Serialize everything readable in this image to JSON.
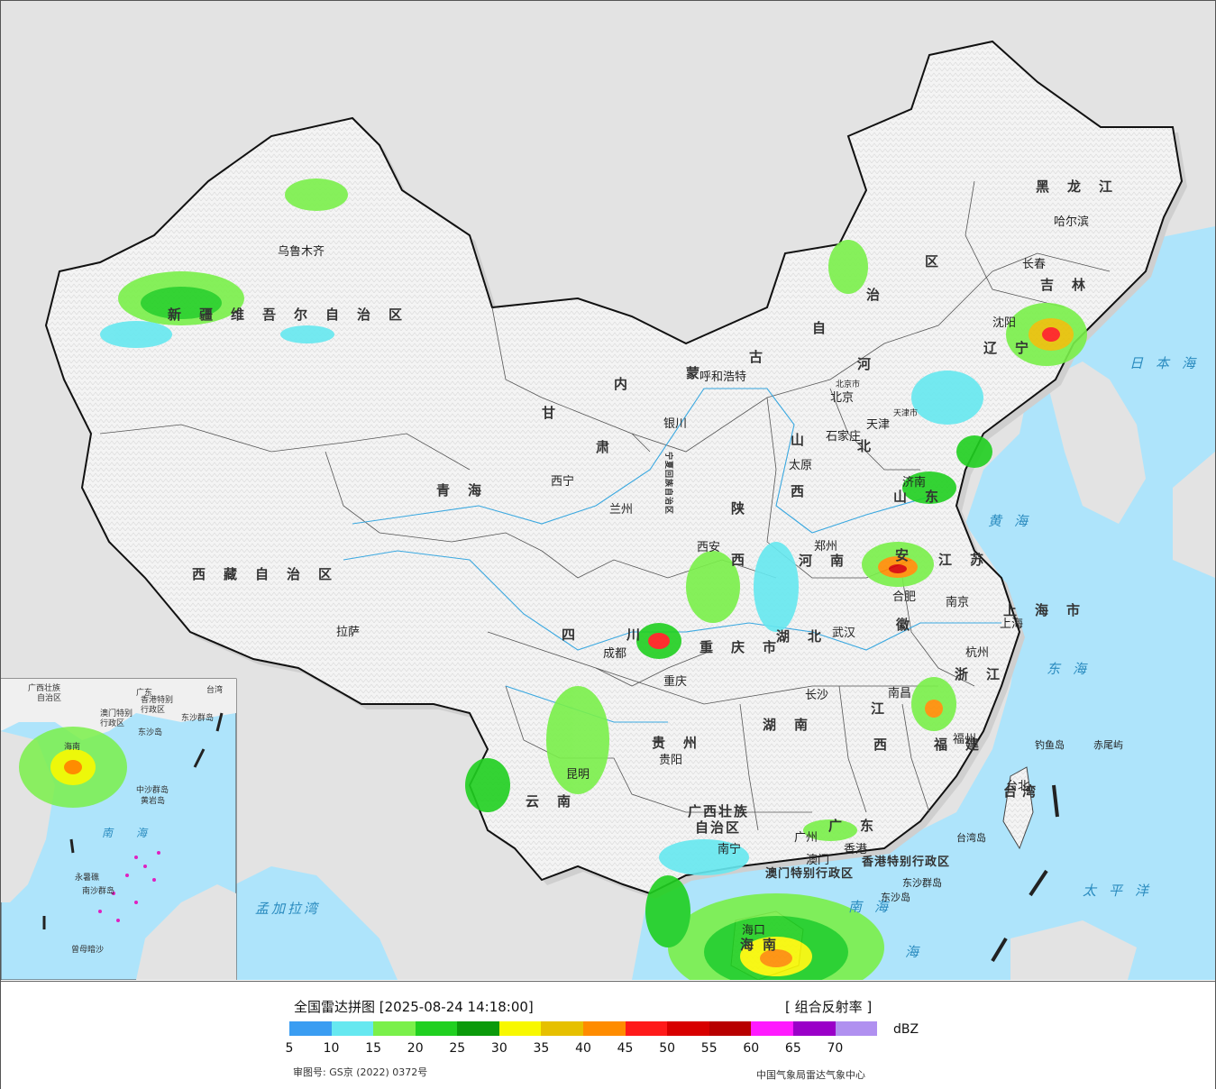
{
  "title": "全国雷达拼图 [2025-08-24 14:18:00]",
  "product": "[ 组合反射率 ]",
  "unit": "dBZ",
  "colorscale": {
    "colors": [
      "#3a9df2",
      "#66e8f0",
      "#7af04a",
      "#20d020",
      "#0b9a0b",
      "#f8f800",
      "#e6c000",
      "#ff8c00",
      "#ff1a1a",
      "#d80000",
      "#b80000",
      "#ff1aff",
      "#9a00c8",
      "#b090f0"
    ],
    "ticks": [
      "5",
      "10",
      "15",
      "20",
      "25",
      "30",
      "35",
      "40",
      "45",
      "50",
      "55",
      "60",
      "65",
      "70"
    ]
  },
  "approval_number": "审图号: GS京 (2022) 0372号",
  "credit": "中国气象局雷达气象中心",
  "regions": [
    {
      "name": "新疆维吾尔自治区",
      "kind": "prov"
    },
    {
      "name": "西藏自治区",
      "kind": "prov"
    },
    {
      "name": "青海",
      "kind": "prov"
    },
    {
      "name": "甘",
      "kind": "prov"
    },
    {
      "name": "肃",
      "kind": "prov"
    },
    {
      "name": "内",
      "kind": "prov"
    },
    {
      "name": "蒙",
      "kind": "prov"
    },
    {
      "name": "古",
      "kind": "prov"
    },
    {
      "name": "自",
      "kind": "prov"
    },
    {
      "name": "治",
      "kind": "prov"
    },
    {
      "name": "区",
      "kind": "prov"
    },
    {
      "name": "黑龙江",
      "kind": "prov"
    },
    {
      "name": "吉林",
      "kind": "prov"
    },
    {
      "name": "辽宁",
      "kind": "prov"
    },
    {
      "name": "河",
      "kind": "prov"
    },
    {
      "name": "北",
      "kind": "prov"
    },
    {
      "name": "山",
      "kind": "prov"
    },
    {
      "name": "西",
      "kind": "prov"
    },
    {
      "name": "山东",
      "kind": "prov"
    },
    {
      "name": "陕",
      "kind": "prov"
    },
    {
      "name": "西",
      "kind": "prov"
    },
    {
      "name": "河南",
      "kind": "prov"
    },
    {
      "name": "江苏",
      "kind": "prov"
    },
    {
      "name": "安",
      "kind": "prov"
    },
    {
      "name": "徽",
      "kind": "prov"
    },
    {
      "name": "湖北",
      "kind": "prov"
    },
    {
      "name": "四",
      "kind": "prov"
    },
    {
      "name": "川",
      "kind": "prov"
    },
    {
      "name": "重庆市",
      "kind": "prov"
    },
    {
      "name": "上海市",
      "kind": "prov"
    },
    {
      "name": "浙江",
      "kind": "prov"
    },
    {
      "name": "湖南",
      "kind": "prov"
    },
    {
      "name": "江",
      "kind": "prov"
    },
    {
      "name": "西",
      "kind": "prov"
    },
    {
      "name": "福建",
      "kind": "prov"
    },
    {
      "name": "贵州",
      "kind": "prov"
    },
    {
      "name": "云南",
      "kind": "prov"
    },
    {
      "name": "广西壮族",
      "kind": "prov"
    },
    {
      "name": "自治区",
      "kind": "prov"
    },
    {
      "name": "广东",
      "kind": "prov"
    },
    {
      "name": "香港特别行政区",
      "kind": "prov"
    },
    {
      "name": "澳门特别行政区",
      "kind": "prov"
    },
    {
      "name": "台湾",
      "kind": "prov"
    },
    {
      "name": "海南",
      "kind": "prov"
    },
    {
      "name": "宁夏回族自治区",
      "kind": "prov"
    }
  ],
  "cities": [
    "乌鲁木齐",
    "拉萨",
    "西宁",
    "兰州",
    "银川",
    "呼和浩特",
    "北京",
    "北京市",
    "天津",
    "天津市",
    "石家庄",
    "太原",
    "西安",
    "郑州",
    "济南",
    "南京",
    "合肥",
    "上海",
    "杭州",
    "武汉",
    "长沙",
    "南昌",
    "福州",
    "成都",
    "重庆",
    "贵阳",
    "昆明",
    "南宁",
    "广州",
    "澳门",
    "香港",
    "海口",
    "沈阳",
    "长春",
    "哈尔滨",
    "台北",
    "台湾岛",
    "钓鱼岛",
    "赤尾屿",
    "东沙群岛",
    "东沙岛"
  ],
  "seas": [
    "日本海",
    "黄海",
    "东海",
    "太平洋",
    "南海",
    "海",
    "孟加拉湾"
  ],
  "inset": {
    "labels": [
      "广西壮族",
      "自治区",
      "广东",
      "台湾",
      "香港特别",
      "行政区",
      "澳门特别",
      "行政区",
      "东沙群岛",
      "东沙岛",
      "海南",
      "中沙群岛",
      "黄岩岛",
      "永暑礁",
      "南沙群岛",
      "曾母暗沙",
      "南",
      "海"
    ]
  }
}
